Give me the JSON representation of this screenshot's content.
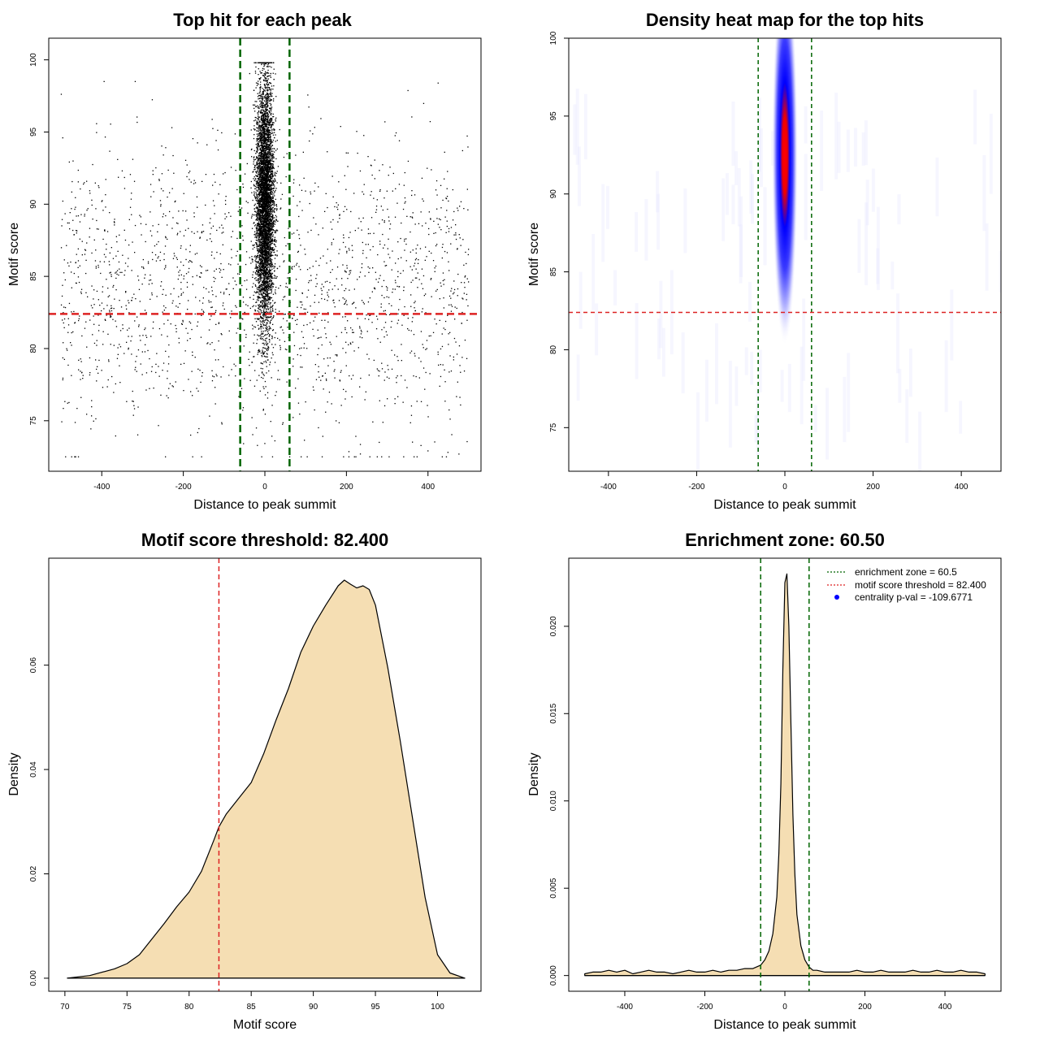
{
  "colors": {
    "green": "#006400",
    "red": "#dd2222",
    "fill": "#f5deb3",
    "blue": "#0000ff",
    "black": "#000000"
  },
  "chart_data": [
    {
      "type": "scatter",
      "title": "Top hit for each peak",
      "xlabel": "Distance to peak summit",
      "ylabel": "Motif score",
      "xlim": [
        -530,
        530
      ],
      "ylim": [
        71.5,
        101.5
      ],
      "xticks": [
        -400,
        -200,
        0,
        200,
        400
      ],
      "yticks": [
        75,
        80,
        85,
        90,
        95,
        100
      ],
      "vlines": [
        -60.5,
        60.5
      ],
      "hline": 82.4,
      "points": {
        "n_background": 1900,
        "n_central": 5500,
        "x_range": [
          -500,
          500
        ],
        "background_score_center": 84,
        "background_score_sd": 5,
        "central_score_center": 90,
        "central_score_sd": 4.3,
        "central_x_sd": 11
      }
    },
    {
      "type": "heatmap",
      "title": "Density heat map for the top hits",
      "xlabel": "Distance to peak summit",
      "ylabel": "Motif score",
      "xlim": [
        -490,
        490
      ],
      "ylim": [
        72.2,
        100
      ],
      "xticks": [
        -400,
        -200,
        0,
        200,
        400
      ],
      "yticks": [
        75,
        80,
        85,
        90,
        95,
        100
      ],
      "vlines": [
        -60.5,
        60.5
      ],
      "hline": 82.4,
      "peak": {
        "x": 0,
        "y": 92.5
      }
    },
    {
      "type": "area",
      "title": "Motif score threshold: 82.400",
      "xlabel": "Motif score",
      "ylabel": "Density",
      "xlim": [
        68.7,
        103.5
      ],
      "ylim": [
        -0.0025,
        0.0805
      ],
      "xticks": [
        70,
        75,
        80,
        85,
        90,
        95,
        100
      ],
      "yticks": [
        0.0,
        0.02,
        0.04,
        0.06
      ],
      "ytick_labels": [
        "0.00",
        "0.02",
        "0.04",
        "0.06"
      ],
      "vline": 82.4,
      "x": [
        70.2,
        72,
        74,
        75,
        76,
        77,
        78,
        79,
        80,
        81,
        82,
        82.4,
        83,
        84,
        85,
        86,
        87,
        88,
        89,
        90,
        91,
        92,
        92.5,
        93,
        93.5,
        94,
        94.5,
        95,
        96,
        97,
        98,
        99,
        100,
        101,
        102.2
      ],
      "y": [
        0.0,
        0.0005,
        0.0018,
        0.0028,
        0.0045,
        0.0075,
        0.0105,
        0.0137,
        0.0165,
        0.0205,
        0.0265,
        0.029,
        0.0315,
        0.0345,
        0.0375,
        0.043,
        0.0495,
        0.0555,
        0.0625,
        0.0675,
        0.0715,
        0.0752,
        0.0763,
        0.0755,
        0.0748,
        0.0752,
        0.0745,
        0.0715,
        0.0595,
        0.0455,
        0.0305,
        0.0155,
        0.0045,
        0.001,
        0.0
      ]
    },
    {
      "type": "area",
      "title": "Enrichment zone: 60.50",
      "xlabel": "Distance to peak summit",
      "ylabel": "Density",
      "xlim": [
        -540,
        540
      ],
      "ylim": [
        -0.0009,
        0.0239
      ],
      "xticks": [
        -400,
        -200,
        0,
        200,
        400
      ],
      "yticks": [
        0.0,
        0.005,
        0.01,
        0.015,
        0.02
      ],
      "ytick_labels": [
        "0.000",
        "0.005",
        "0.010",
        "0.015",
        "0.020"
      ],
      "vlines": [
        -60.5,
        60.5
      ],
      "x": [
        -500,
        -480,
        -460,
        -440,
        -420,
        -400,
        -380,
        -360,
        -340,
        -320,
        -300,
        -280,
        -260,
        -240,
        -220,
        -200,
        -180,
        -160,
        -140,
        -120,
        -100,
        -80,
        -60,
        -50,
        -40,
        -30,
        -20,
        -15,
        -10,
        -5,
        0,
        5,
        10,
        15,
        20,
        25,
        30,
        40,
        50,
        60,
        70,
        80,
        100,
        120,
        140,
        160,
        180,
        200,
        220,
        240,
        260,
        280,
        300,
        320,
        340,
        360,
        380,
        400,
        420,
        440,
        460,
        480,
        500
      ],
      "y": [
        0.0001,
        0.0002,
        0.0002,
        0.0003,
        0.0002,
        0.0003,
        0.0001,
        0.0002,
        0.0003,
        0.0002,
        0.0002,
        0.0001,
        0.0002,
        0.0003,
        0.0002,
        0.0002,
        0.0003,
        0.0002,
        0.0003,
        0.0003,
        0.0004,
        0.0004,
        0.0006,
        0.0009,
        0.0014,
        0.0024,
        0.0045,
        0.007,
        0.011,
        0.0175,
        0.0225,
        0.023,
        0.02,
        0.0145,
        0.0092,
        0.0058,
        0.0035,
        0.0017,
        0.0009,
        0.0005,
        0.0003,
        0.0003,
        0.0002,
        0.0002,
        0.0002,
        0.0002,
        0.0003,
        0.0002,
        0.0002,
        0.0003,
        0.0002,
        0.0002,
        0.0002,
        0.0003,
        0.0002,
        0.0002,
        0.0003,
        0.0002,
        0.0002,
        0.0003,
        0.0002,
        0.0002,
        0.0001
      ],
      "legend": {
        "position": "top-right",
        "items": [
          {
            "label": "enrichment zone = 60.5",
            "style": "dotted",
            "color": "#006400"
          },
          {
            "label": "motif score threshold = 82.400",
            "style": "dotted",
            "color": "#dd2222"
          },
          {
            "label": "centrality p-val = -109.6771",
            "style": "point",
            "color": "#0000ff"
          }
        ]
      }
    }
  ]
}
